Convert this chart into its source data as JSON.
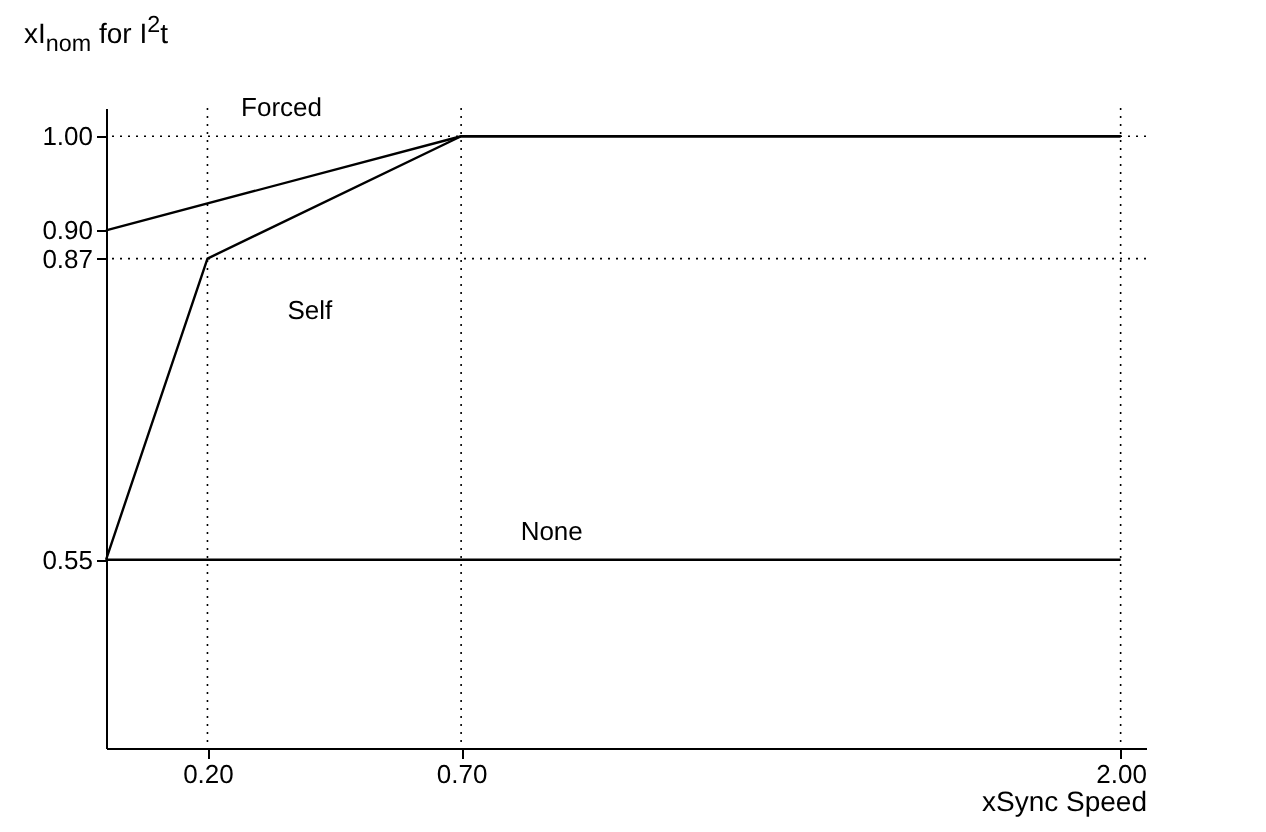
{
  "chart_data": {
    "type": "line",
    "xlabel": "xSync Speed",
    "ylabel": "xI$_{nom}$ for I$^{2}$t",
    "xlim": [
      0,
      2.05
    ],
    "ylim": [
      0.35,
      1.03
    ],
    "xticks": [
      {
        "value": 0.2,
        "label": "0.20"
      },
      {
        "value": 0.7,
        "label": "0.70"
      },
      {
        "value": 2,
        "label": "2.00"
      }
    ],
    "yticks": [
      {
        "value": 0.55,
        "label": "0.55"
      },
      {
        "value": 0.87,
        "label": "0.87"
      },
      {
        "value": 0.9,
        "label": "0.90"
      },
      {
        "value": 1,
        "label": "1.00"
      }
    ],
    "series": [
      {
        "name": "Forced",
        "color": "#000000",
        "x": [
          0,
          0.7,
          2.0
        ],
        "values": [
          0.9,
          1.0,
          1.0
        ]
      },
      {
        "name": "Self",
        "color": "#000000",
        "x": [
          0,
          0.2,
          0.7,
          2.0
        ],
        "values": [
          0.55,
          0.87,
          1.0,
          1.0
        ]
      },
      {
        "name": "None",
        "color": "#000000",
        "x": [
          0,
          2.0
        ],
        "values": [
          0.55,
          0.55
        ]
      }
    ],
    "ref_lines": [
      {
        "axis": "x",
        "value": 0.2,
        "line_style": "dotted",
        "color": "#000000"
      },
      {
        "axis": "x",
        "value": 0.7,
        "line_style": "dotted",
        "color": "#000000"
      },
      {
        "axis": "x",
        "value": 2.0,
        "line_style": "dotted",
        "color": "#000000"
      },
      {
        "axis": "y",
        "value": 0.87,
        "line_style": "dotted",
        "color": "#000000"
      },
      {
        "axis": "y",
        "value": 1.0,
        "line_style": "dotted",
        "color": "#000000"
      }
    ]
  }
}
